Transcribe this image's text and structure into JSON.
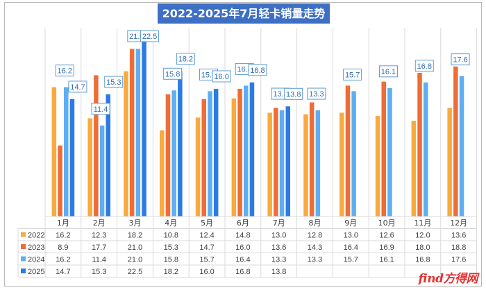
{
  "chart_data": {
    "type": "bar",
    "title": "2022-2025年7月轻卡销量走势",
    "categories": [
      "1月",
      "2月",
      "3月",
      "4月",
      "5月",
      "6月",
      "7月",
      "8月",
      "9月",
      "10月",
      "11月",
      "12月"
    ],
    "series": [
      {
        "name": "2022",
        "color": "#f9aa3f",
        "values": [
          16.2,
          12.3,
          18.2,
          10.8,
          12.4,
          14.8,
          13.0,
          12.8,
          13.0,
          12.6,
          12.0,
          13.6
        ]
      },
      {
        "name": "2023",
        "color": "#ef6d35",
        "values": [
          8.9,
          17.7,
          21.0,
          15.3,
          14.7,
          16.0,
          13.6,
          14.3,
          16.4,
          16.9,
          18.0,
          18.8
        ]
      },
      {
        "name": "2024",
        "color": "#5eaef3",
        "values": [
          16.2,
          11.4,
          21.0,
          15.8,
          15.7,
          16.4,
          13.3,
          13.3,
          15.7,
          16.1,
          16.8,
          17.6
        ]
      },
      {
        "name": "2025",
        "color": "#2c7be5",
        "values": [
          14.7,
          15.3,
          22.5,
          18.2,
          16.0,
          16.8,
          13.8,
          null,
          null,
          null,
          null,
          null
        ]
      }
    ],
    "callouts": [
      {
        "series": "2024",
        "values": [
          "16.2",
          "11.4",
          "21.0",
          "15.8",
          "15.7",
          "16.4",
          "13.3",
          "13.3",
          "15.7",
          "16.1",
          "16.8",
          "17.6"
        ]
      },
      {
        "series": "2025",
        "values": [
          "14.7",
          "15.3",
          "22.5",
          "18.2",
          "16.0",
          "16.8",
          "13.8"
        ]
      }
    ],
    "table": {
      "rows": [
        {
          "label": "2022",
          "values": [
            "16.2",
            "12.3",
            "18.2",
            "10.8",
            "12.4",
            "14.8",
            "13.0",
            "12.8",
            "13.0",
            "12.6",
            "12.0",
            "13.6"
          ]
        },
        {
          "label": "2023",
          "values": [
            "8.9",
            "17.7",
            "21.0",
            "15.3",
            "14.7",
            "16.0",
            "13.6",
            "14.3",
            "16.4",
            "16.9",
            "18.0",
            "18.8"
          ]
        },
        {
          "label": "2024",
          "values": [
            "16.2",
            "11.4",
            "21.0",
            "15.8",
            "15.7",
            "16.4",
            "13.3",
            "13.3",
            "15.7",
            "16.1",
            "16.8",
            "17.6"
          ]
        },
        {
          "label": "2025",
          "values": [
            "14.7",
            "15.3",
            "22.5",
            "18.2",
            "16.0",
            "16.8",
            "13.8",
            "",
            "",
            "",
            "",
            ""
          ]
        }
      ]
    },
    "ylim": [
      0,
      24
    ],
    "grid": "vertical category separators",
    "legend": "bottom data table"
  },
  "watermark": "find方得网"
}
